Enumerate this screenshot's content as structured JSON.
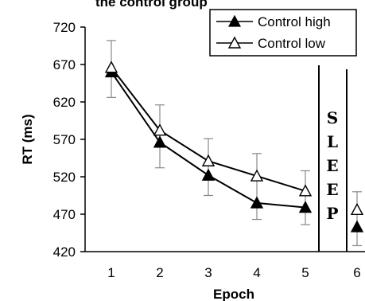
{
  "chart_data": {
    "type": "line",
    "title": "the control group",
    "xlabel": "Epoch",
    "ylabel": "RT (ms)",
    "x": [
      1,
      2,
      3,
      4,
      5
    ],
    "ylim": [
      420,
      720
    ],
    "yticks": [
      420,
      470,
      520,
      570,
      620,
      670,
      720
    ],
    "xticks": [
      1,
      2,
      3,
      4,
      5,
      6
    ],
    "series": [
      {
        "name": "Control high",
        "marker": "filled-triangle",
        "values": [
          660,
          566,
          522,
          485,
          479
        ],
        "error_upper": [
          702,
          616,
          571,
          551,
          528
        ],
        "error_lower": [
          626,
          532,
          495,
          463,
          456
        ]
      },
      {
        "name": "Control low",
        "marker": "open-triangle",
        "values": [
          666,
          582,
          541,
          521,
          501
        ],
        "error_upper": [
          702,
          616,
          571,
          551,
          528
        ],
        "error_lower": [
          626,
          532,
          495,
          463,
          456
        ]
      }
    ],
    "post_sleep": {
      "x": 6,
      "points": [
        {
          "series": "Control high",
          "value": 453
        },
        {
          "series": "Control low",
          "value": 476
        }
      ],
      "error_upper": 500,
      "error_lower": 428
    },
    "sleep_label": [
      "S",
      "L",
      "E",
      "E",
      "P"
    ],
    "legend_position": "top-right",
    "grid": false
  }
}
